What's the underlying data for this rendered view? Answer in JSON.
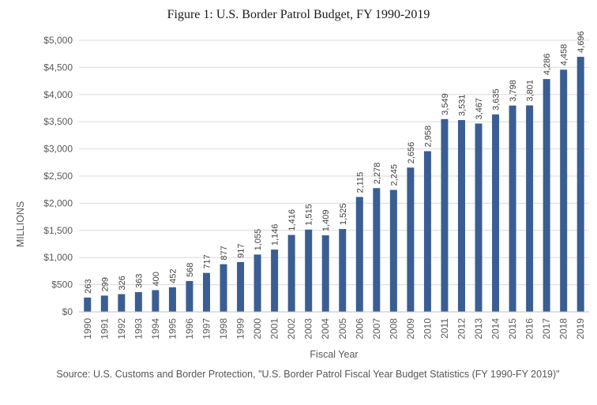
{
  "chart_data": {
    "type": "bar",
    "title": "Figure 1: U.S. Border Patrol Budget, FY 1990-2019",
    "xlabel": "Fiscal Year",
    "ylabel": "MILLIONS",
    "ylim": [
      0,
      5000
    ],
    "y_tick_values": [
      0,
      500,
      1000,
      1500,
      2000,
      2500,
      3000,
      3500,
      4000,
      4500,
      5000
    ],
    "y_tick_labels": [
      "$0",
      "$500",
      "$1,000",
      "$1,500",
      "$2,000",
      "$2,500",
      "$3,000",
      "$3,500",
      "$4,000",
      "$4,500",
      "$5,000"
    ],
    "grid": "horizontal",
    "bar_color": "#3a5e93",
    "categories": [
      "1990",
      "1991",
      "1992",
      "1993",
      "1994",
      "1995",
      "1996",
      "1997",
      "1998",
      "1999",
      "2000",
      "2001",
      "2002",
      "2003",
      "2004",
      "2005",
      "2006",
      "2007",
      "2008",
      "2009",
      "2010",
      "2011",
      "2012",
      "2013",
      "2014",
      "2015",
      "2016",
      "2017",
      "2018",
      "2019"
    ],
    "values": [
      263,
      299,
      326,
      363,
      400,
      452,
      568,
      717,
      877,
      917,
      1055,
      1146,
      1416,
      1515,
      1409,
      1525,
      2115,
      2278,
      2245,
      2656,
      2958,
      3549,
      3531,
      3467,
      3635,
      3798,
      3801,
      4286,
      4458,
      4696
    ],
    "data_labels": [
      "263",
      "299",
      "326",
      "363",
      "400",
      "452",
      "568",
      "717",
      "877",
      "917",
      "1,055",
      "1,146",
      "1,416",
      "1,515",
      "1,409",
      "1,525",
      "2,115",
      "2,278",
      "2,245",
      "2,656",
      "2,958",
      "3,549",
      "3,531",
      "3,467",
      "3,635",
      "3,798",
      "3,801",
      "4,286",
      "4,458",
      "4,696"
    ],
    "source": "Source: U.S. Customs and Border Protection, \"U.S. Border Patrol Fiscal Year Budget Statistics (FY 1990-FY 2019)\""
  }
}
